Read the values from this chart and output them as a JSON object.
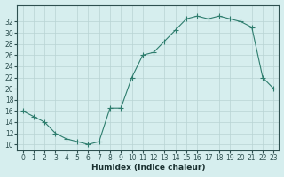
{
  "x": [
    0,
    1,
    2,
    3,
    4,
    5,
    6,
    7,
    8,
    9,
    10,
    11,
    12,
    13,
    14,
    15,
    16,
    17,
    18,
    19,
    20,
    21,
    22,
    23
  ],
  "y": [
    16,
    15,
    14,
    12,
    11,
    10.5,
    10,
    10.5,
    16.5,
    16.5,
    22,
    26,
    26.5,
    28.5,
    30.5,
    32.5,
    33,
    32.5,
    33,
    32.5,
    32,
    31,
    22,
    20
  ],
  "xlabel": "Humidex (Indice chaleur)",
  "ylabel": "",
  "line_color": "#2e7d6e",
  "marker": "+",
  "marker_color": "#2e7d6e",
  "bg_color": "#d6eeee",
  "grid_color": "#b8d4d4",
  "ylim": [
    9,
    35
  ],
  "xlim": [
    -0.5,
    23.5
  ],
  "yticks": [
    10,
    12,
    14,
    16,
    18,
    20,
    22,
    24,
    26,
    28,
    30,
    32
  ],
  "xticks": [
    0,
    1,
    2,
    3,
    4,
    5,
    6,
    7,
    8,
    9,
    10,
    11,
    12,
    13,
    14,
    15,
    16,
    17,
    18,
    19,
    20,
    21,
    22,
    23
  ]
}
